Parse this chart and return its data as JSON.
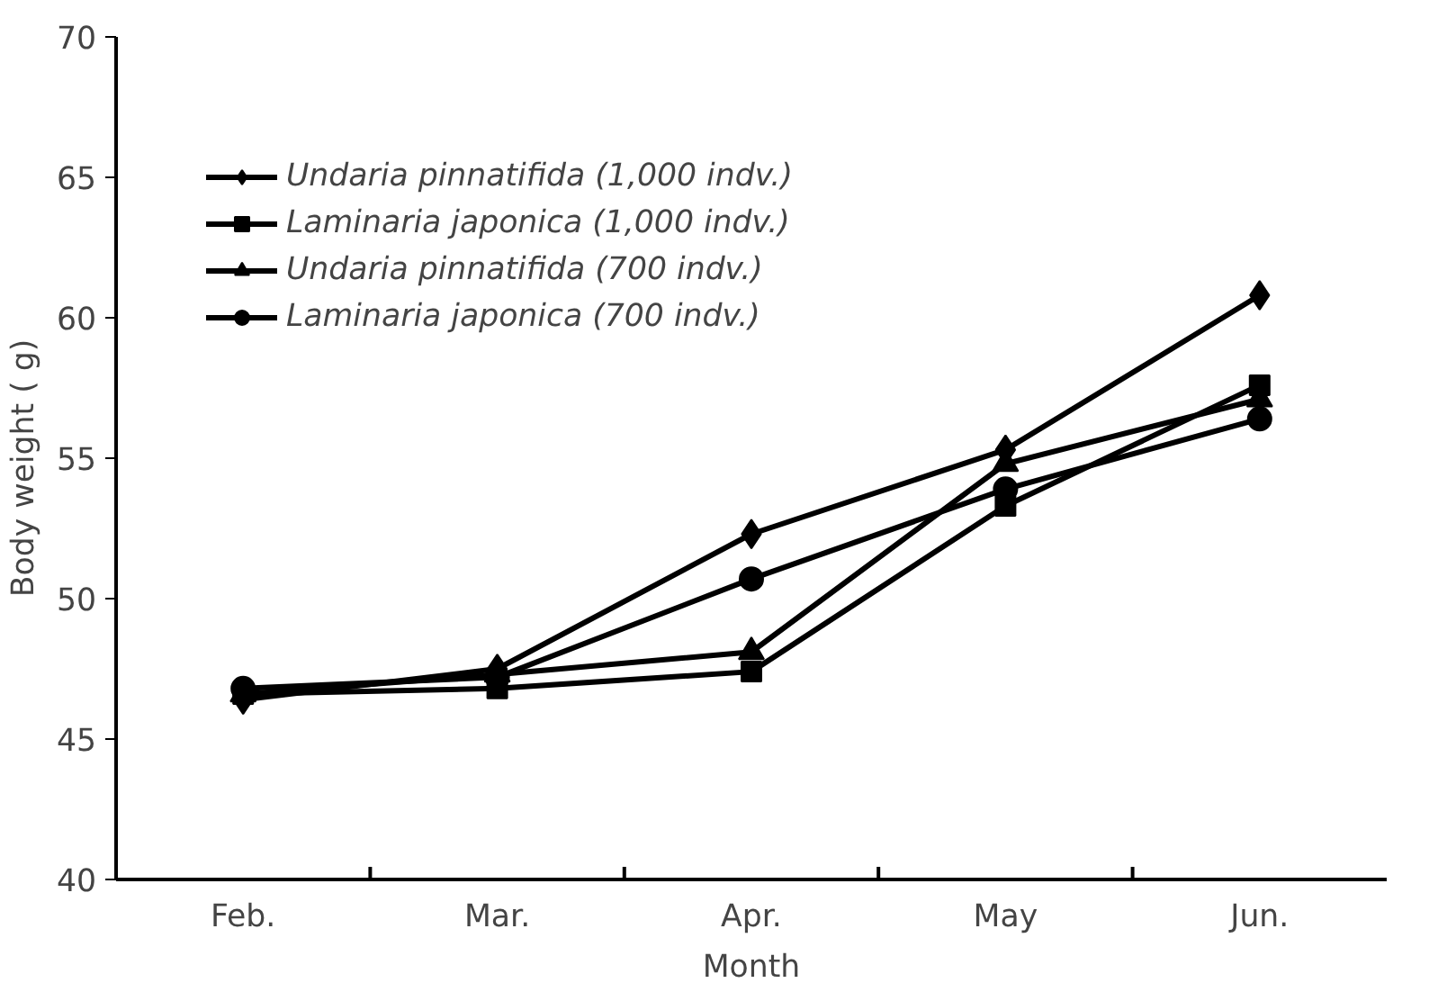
{
  "chart_data": {
    "type": "line",
    "xlabel": "Month",
    "ylabel": "Body weight (   g)",
    "categories": [
      "Feb.",
      "Mar.",
      "Apr.",
      "May",
      "Jun."
    ],
    "series": [
      {
        "name": "Undaria pinnatifida (1,000 indv.)",
        "color": "#000000",
        "marker": "diamond",
        "values": [
          46.4,
          47.5,
          52.3,
          55.3,
          60.8
        ]
      },
      {
        "name": "Laminaria japonica (1,000 indv.)",
        "color": "#000000",
        "marker": "square",
        "values": [
          46.6,
          46.8,
          47.4,
          53.3,
          57.6
        ]
      },
      {
        "name": "Undaria pinnatifida (700 indv.)",
        "color": "#000000",
        "marker": "triangle",
        "values": [
          46.6,
          47.3,
          48.1,
          54.8,
          57.1
        ]
      },
      {
        "name": "Laminaria japonica (700 indv.)",
        "color": "#000000",
        "marker": "circle",
        "values": [
          46.8,
          47.2,
          50.7,
          53.9,
          56.4
        ]
      }
    ],
    "ylim": [
      40,
      70
    ],
    "yticks": [
      40,
      45,
      50,
      55,
      60,
      65,
      70
    ],
    "grid": false,
    "legend": "top left",
    "line_style": "solid"
  }
}
